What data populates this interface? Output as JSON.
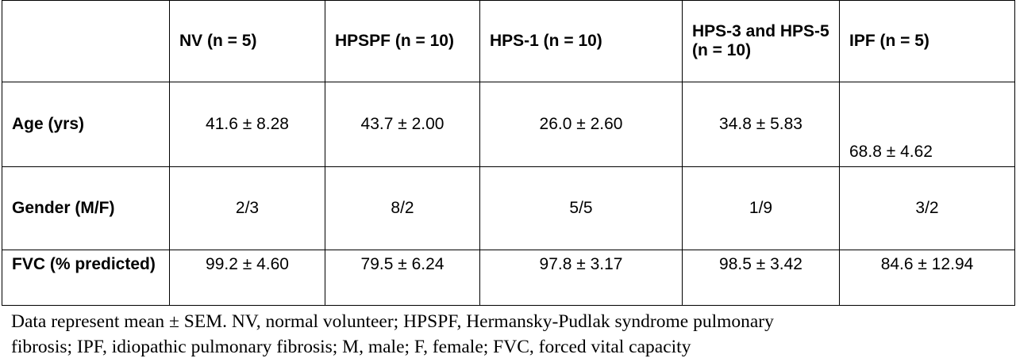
{
  "table": {
    "header": [
      "",
      "NV (n = 5)",
      "HPSPF (n = 10)",
      "HPS-1 (n = 10)",
      "HPS-3 and HPS-5 (n = 10)",
      "IPF (n = 5)"
    ],
    "rows": [
      [
        "Age (yrs)",
        "41.6 ± 8.28",
        "43.7 ± 2.00",
        "26.0 ± 2.60",
        "34.8 ± 5.83",
        "68.8 ± 4.62"
      ],
      [
        "Gender (M/F)",
        "2/3",
        "8/2",
        "5/5",
        "1/9",
        "3/2"
      ],
      [
        "FVC (% predicted)",
        "99.2 ± 4.60",
        "79.5 ± 6.24",
        "97.8 ± 3.17",
        "98.5 ± 3.42",
        "84.6 ± 12.94"
      ]
    ]
  },
  "footnote": [
    "Data represent mean ± SEM. NV, normal volunteer; HPSPF, Hermansky-Pudlak syndrome pulmonary",
    "fibrosis; IPF, idiopathic pulmonary fibrosis; M, male; F, female; FVC, forced vital capacity"
  ]
}
